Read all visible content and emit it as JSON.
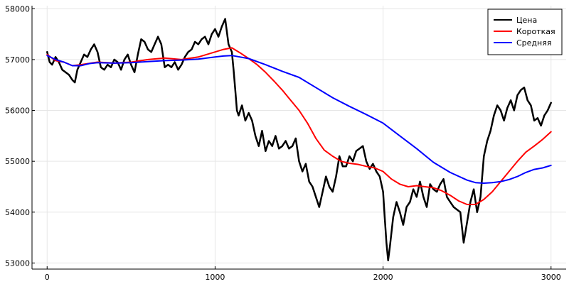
{
  "chart_data": {
    "type": "line",
    "title": "",
    "xlabel": "",
    "ylabel": "",
    "xlim": [
      -90,
      3090
    ],
    "ylim": [
      52880,
      58060
    ],
    "xticks": [
      0,
      1000,
      2000,
      3000
    ],
    "yticks": [
      53000,
      54000,
      55000,
      56000,
      57000,
      58000
    ],
    "grid": true,
    "legend_position": "top-right",
    "series": [
      {
        "name": "Цена",
        "color": "#000000",
        "line_width": 2.5,
        "points": [
          [
            0,
            57150
          ],
          [
            15,
            56950
          ],
          [
            30,
            56900
          ],
          [
            50,
            57050
          ],
          [
            70,
            56950
          ],
          [
            90,
            56800
          ],
          [
            110,
            56750
          ],
          [
            130,
            56700
          ],
          [
            150,
            56600
          ],
          [
            165,
            56550
          ],
          [
            180,
            56800
          ],
          [
            200,
            56950
          ],
          [
            220,
            57100
          ],
          [
            240,
            57050
          ],
          [
            260,
            57200
          ],
          [
            280,
            57300
          ],
          [
            300,
            57150
          ],
          [
            320,
            56850
          ],
          [
            340,
            56800
          ],
          [
            360,
            56900
          ],
          [
            380,
            56850
          ],
          [
            400,
            57000
          ],
          [
            420,
            56950
          ],
          [
            440,
            56800
          ],
          [
            460,
            57000
          ],
          [
            480,
            57100
          ],
          [
            500,
            56900
          ],
          [
            520,
            56750
          ],
          [
            540,
            57100
          ],
          [
            560,
            57400
          ],
          [
            580,
            57350
          ],
          [
            600,
            57200
          ],
          [
            620,
            57150
          ],
          [
            640,
            57300
          ],
          [
            660,
            57450
          ],
          [
            680,
            57300
          ],
          [
            700,
            56850
          ],
          [
            720,
            56900
          ],
          [
            740,
            56850
          ],
          [
            760,
            56950
          ],
          [
            780,
            56800
          ],
          [
            800,
            56900
          ],
          [
            820,
            57050
          ],
          [
            840,
            57150
          ],
          [
            860,
            57200
          ],
          [
            880,
            57350
          ],
          [
            900,
            57300
          ],
          [
            920,
            57400
          ],
          [
            940,
            57450
          ],
          [
            960,
            57300
          ],
          [
            980,
            57500
          ],
          [
            1000,
            57600
          ],
          [
            1020,
            57450
          ],
          [
            1040,
            57650
          ],
          [
            1060,
            57800
          ],
          [
            1080,
            57300
          ],
          [
            1100,
            57150
          ],
          [
            1110,
            56800
          ],
          [
            1120,
            56400
          ],
          [
            1130,
            56000
          ],
          [
            1140,
            55900
          ],
          [
            1160,
            56100
          ],
          [
            1180,
            55800
          ],
          [
            1200,
            55950
          ],
          [
            1220,
            55800
          ],
          [
            1240,
            55500
          ],
          [
            1260,
            55300
          ],
          [
            1280,
            55600
          ],
          [
            1300,
            55200
          ],
          [
            1320,
            55400
          ],
          [
            1340,
            55300
          ],
          [
            1360,
            55500
          ],
          [
            1380,
            55250
          ],
          [
            1400,
            55300
          ],
          [
            1420,
            55400
          ],
          [
            1440,
            55250
          ],
          [
            1460,
            55300
          ],
          [
            1480,
            55450
          ],
          [
            1500,
            55000
          ],
          [
            1520,
            54800
          ],
          [
            1540,
            54950
          ],
          [
            1560,
            54600
          ],
          [
            1580,
            54500
          ],
          [
            1600,
            54300
          ],
          [
            1620,
            54100
          ],
          [
            1640,
            54400
          ],
          [
            1660,
            54700
          ],
          [
            1680,
            54500
          ],
          [
            1700,
            54400
          ],
          [
            1720,
            54700
          ],
          [
            1740,
            55100
          ],
          [
            1760,
            54900
          ],
          [
            1780,
            54900
          ],
          [
            1800,
            55100
          ],
          [
            1820,
            55000
          ],
          [
            1840,
            55200
          ],
          [
            1860,
            55250
          ],
          [
            1880,
            55300
          ],
          [
            1900,
            55000
          ],
          [
            1920,
            54850
          ],
          [
            1940,
            54950
          ],
          [
            1960,
            54800
          ],
          [
            1980,
            54700
          ],
          [
            2000,
            54400
          ],
          [
            2010,
            53900
          ],
          [
            2020,
            53400
          ],
          [
            2030,
            53050
          ],
          [
            2040,
            53300
          ],
          [
            2060,
            53900
          ],
          [
            2080,
            54200
          ],
          [
            2100,
            54000
          ],
          [
            2120,
            53750
          ],
          [
            2140,
            54100
          ],
          [
            2160,
            54200
          ],
          [
            2180,
            54450
          ],
          [
            2200,
            54300
          ],
          [
            2220,
            54600
          ],
          [
            2240,
            54300
          ],
          [
            2260,
            54100
          ],
          [
            2280,
            54550
          ],
          [
            2300,
            54450
          ],
          [
            2320,
            54400
          ],
          [
            2340,
            54550
          ],
          [
            2360,
            54650
          ],
          [
            2380,
            54300
          ],
          [
            2400,
            54200
          ],
          [
            2420,
            54100
          ],
          [
            2440,
            54050
          ],
          [
            2460,
            54000
          ],
          [
            2480,
            53400
          ],
          [
            2500,
            53800
          ],
          [
            2520,
            54200
          ],
          [
            2540,
            54450
          ],
          [
            2560,
            54000
          ],
          [
            2580,
            54300
          ],
          [
            2600,
            55100
          ],
          [
            2620,
            55400
          ],
          [
            2640,
            55600
          ],
          [
            2660,
            55900
          ],
          [
            2680,
            56100
          ],
          [
            2700,
            56000
          ],
          [
            2720,
            55800
          ],
          [
            2740,
            56050
          ],
          [
            2760,
            56200
          ],
          [
            2780,
            56000
          ],
          [
            2800,
            56300
          ],
          [
            2820,
            56400
          ],
          [
            2840,
            56450
          ],
          [
            2860,
            56200
          ],
          [
            2880,
            56100
          ],
          [
            2900,
            55800
          ],
          [
            2920,
            55850
          ],
          [
            2940,
            55700
          ],
          [
            2960,
            55900
          ],
          [
            2980,
            56000
          ],
          [
            3000,
            56150
          ]
        ]
      },
      {
        "name": "Короткая",
        "color": "#ff0000",
        "line_width": 2,
        "points": [
          [
            0,
            57100
          ],
          [
            50,
            56980
          ],
          [
            100,
            56950
          ],
          [
            150,
            56880
          ],
          [
            200,
            56900
          ],
          [
            300,
            56950
          ],
          [
            400,
            56930
          ],
          [
            500,
            56950
          ],
          [
            600,
            57000
          ],
          [
            700,
            57030
          ],
          [
            800,
            57000
          ],
          [
            900,
            57050
          ],
          [
            1000,
            57150
          ],
          [
            1050,
            57200
          ],
          [
            1100,
            57230
          ],
          [
            1150,
            57130
          ],
          [
            1200,
            57020
          ],
          [
            1250,
            56900
          ],
          [
            1300,
            56750
          ],
          [
            1350,
            56580
          ],
          [
            1400,
            56400
          ],
          [
            1450,
            56200
          ],
          [
            1500,
            56000
          ],
          [
            1550,
            55750
          ],
          [
            1600,
            55450
          ],
          [
            1650,
            55220
          ],
          [
            1700,
            55100
          ],
          [
            1750,
            55000
          ],
          [
            1800,
            54960
          ],
          [
            1850,
            54940
          ],
          [
            1900,
            54900
          ],
          [
            1950,
            54870
          ],
          [
            2000,
            54800
          ],
          [
            2050,
            54650
          ],
          [
            2100,
            54550
          ],
          [
            2150,
            54500
          ],
          [
            2200,
            54520
          ],
          [
            2250,
            54500
          ],
          [
            2300,
            54480
          ],
          [
            2350,
            54420
          ],
          [
            2400,
            54330
          ],
          [
            2450,
            54220
          ],
          [
            2500,
            54150
          ],
          [
            2550,
            54150
          ],
          [
            2600,
            54250
          ],
          [
            2650,
            54400
          ],
          [
            2700,
            54600
          ],
          [
            2750,
            54800
          ],
          [
            2800,
            55000
          ],
          [
            2850,
            55180
          ],
          [
            2900,
            55300
          ],
          [
            2950,
            55430
          ],
          [
            3000,
            55580
          ]
        ]
      },
      {
        "name": "Средняя",
        "color": "#0000ff",
        "line_width": 2,
        "points": [
          [
            0,
            57080
          ],
          [
            50,
            57000
          ],
          [
            100,
            56950
          ],
          [
            150,
            56880
          ],
          [
            200,
            56880
          ],
          [
            250,
            56920
          ],
          [
            300,
            56940
          ],
          [
            400,
            56930
          ],
          [
            500,
            56940
          ],
          [
            600,
            56960
          ],
          [
            700,
            56980
          ],
          [
            800,
            56990
          ],
          [
            900,
            57010
          ],
          [
            1000,
            57050
          ],
          [
            1050,
            57070
          ],
          [
            1100,
            57080
          ],
          [
            1200,
            57020
          ],
          [
            1300,
            56900
          ],
          [
            1400,
            56770
          ],
          [
            1500,
            56650
          ],
          [
            1600,
            56450
          ],
          [
            1700,
            56250
          ],
          [
            1800,
            56080
          ],
          [
            1900,
            55920
          ],
          [
            2000,
            55750
          ],
          [
            2100,
            55500
          ],
          [
            2200,
            55250
          ],
          [
            2300,
            54980
          ],
          [
            2400,
            54780
          ],
          [
            2500,
            54630
          ],
          [
            2550,
            54580
          ],
          [
            2600,
            54570
          ],
          [
            2650,
            54580
          ],
          [
            2700,
            54600
          ],
          [
            2750,
            54640
          ],
          [
            2800,
            54700
          ],
          [
            2850,
            54780
          ],
          [
            2900,
            54840
          ],
          [
            2950,
            54870
          ],
          [
            3000,
            54920
          ]
        ]
      }
    ]
  }
}
